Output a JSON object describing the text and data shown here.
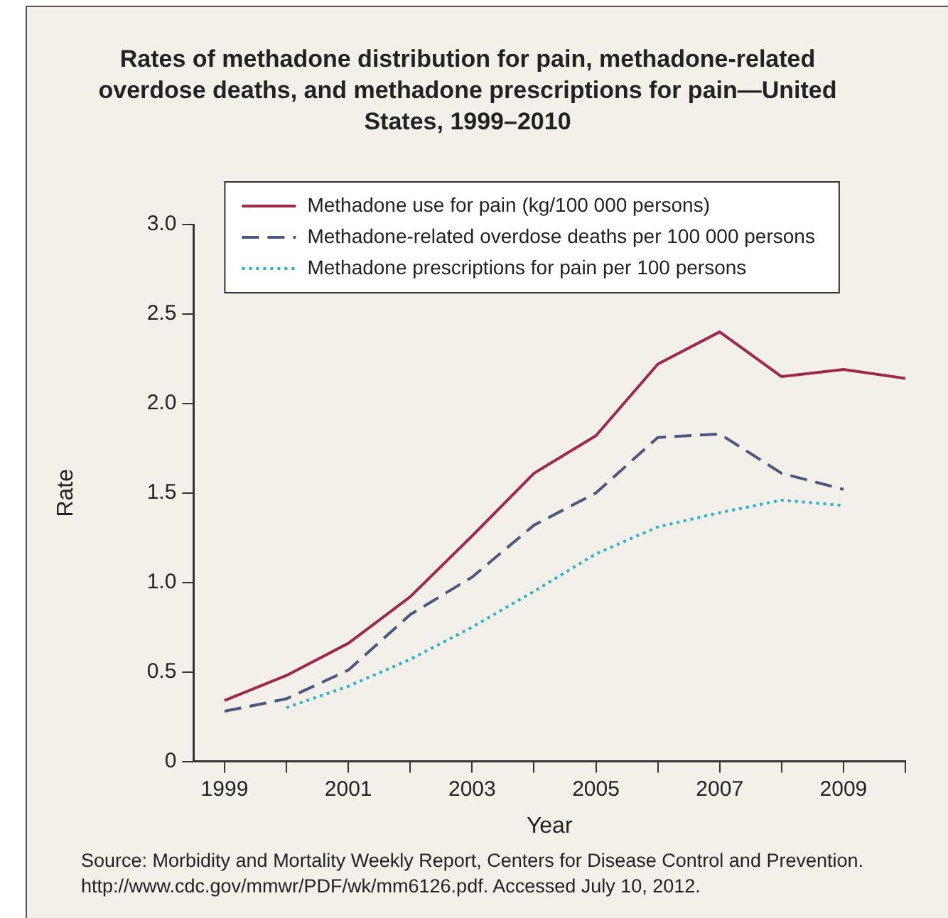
{
  "chart_data": {
    "type": "line",
    "title": "Rates of methadone distribution for pain, methadone-related overdose deaths, and methadone prescriptions for pain—United States, 1999–2010",
    "xlabel": "Year",
    "ylabel": "Rate",
    "x": [
      1999,
      2000,
      2001,
      2002,
      2003,
      2004,
      2005,
      2006,
      2007,
      2008,
      2009,
      2010
    ],
    "series": [
      {
        "name": "Methadone use for pain (kg/100 000 persons)",
        "color": "#9e2a4a",
        "line_style": "solid",
        "values": [
          0.34,
          0.48,
          0.66,
          0.92,
          1.26,
          1.61,
          1.82,
          2.22,
          2.4,
          2.15,
          2.19,
          2.14
        ]
      },
      {
        "name": "Methadone-related overdose deaths per 100 000 persons",
        "color": "#4a5880",
        "line_style": "dashed",
        "values": [
          0.28,
          0.35,
          0.51,
          0.82,
          1.03,
          1.32,
          1.5,
          1.81,
          1.83,
          1.61,
          1.52,
          null
        ]
      },
      {
        "name": "Methadone prescriptions for pain per 100 persons",
        "color": "#2ab0c8",
        "line_style": "dotted",
        "values": [
          null,
          0.3,
          0.42,
          0.57,
          0.75,
          0.95,
          1.16,
          1.31,
          1.39,
          1.46,
          1.43,
          null
        ]
      }
    ],
    "xlim": [
      1998.5,
      2010
    ],
    "xticks": [
      1999,
      {
        "value": 2000,
        "label": null
      },
      2001,
      {
        "value": 2002,
        "label": null
      },
      2003,
      {
        "value": 2004,
        "label": null
      },
      2005,
      {
        "value": 2006,
        "label": null
      },
      2007,
      {
        "value": 2008,
        "label": null
      },
      2009,
      {
        "value": 2010,
        "label": null
      }
    ],
    "ylim": [
      0,
      3
    ],
    "yticks": [
      0,
      0.5,
      {
        "value": 1,
        "label": "1.0"
      },
      1.5,
      {
        "value": 2,
        "label": "2.0"
      },
      2.5,
      {
        "value": 3,
        "label": "3.0"
      }
    ],
    "grid": false,
    "legend": "top",
    "marker": "none",
    "annotations": [
      "Source: Morbidity and Mortality Weekly Report, Centers for Disease Control and Prevention. http://www.cdc.gov/mmwr/PDF/wk/mm6126.pdf. Accessed July 10, 2012."
    ]
  }
}
